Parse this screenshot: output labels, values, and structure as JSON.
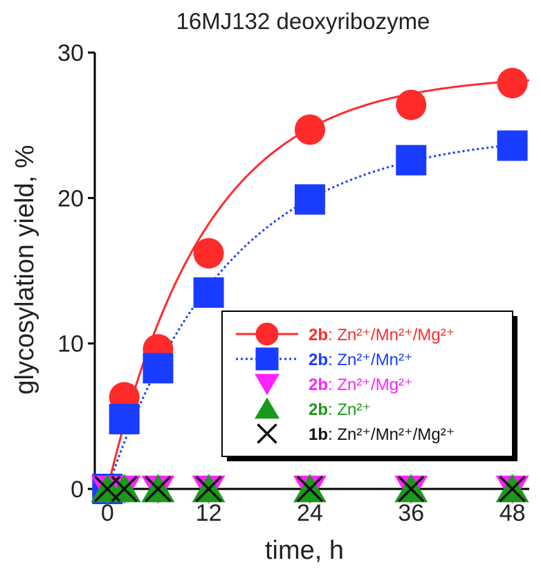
{
  "chart_data": {
    "type": "scatter",
    "title": "16MJ132 deoxyribozyme",
    "xlabel": "time, h",
    "ylabel": "glycosylation yield, %",
    "xlim": [
      -1.5,
      50
    ],
    "ylim": [
      0,
      30
    ],
    "xticks": [
      "0",
      "12",
      "24",
      "36",
      "48"
    ],
    "yticks": [
      "0",
      "10",
      "20",
      "30"
    ],
    "legend_position": "lower-right",
    "series": [
      {
        "name_bold": "2b",
        "name_rest": ": Zn²⁺/Mn²⁺/Mg²⁺",
        "marker": "circle",
        "color": "#ff2a2a",
        "line": "solid",
        "x": [
          0,
          2,
          6,
          12,
          24,
          36,
          48
        ],
        "y": [
          0,
          6.3,
          9.6,
          16.2,
          24.7,
          26.4,
          27.9
        ],
        "fit": {
          "ymax": 28.5,
          "k": 0.085
        }
      },
      {
        "name_bold": "2b",
        "name_rest": ": Zn²⁺/Mn²⁺",
        "marker": "square",
        "color": "#1a3cff",
        "line": "dotted",
        "x": [
          0,
          2,
          6,
          12,
          24,
          36,
          48
        ],
        "y": [
          0,
          4.8,
          8.3,
          13.5,
          19.9,
          22.6,
          23.6
        ],
        "fit": {
          "ymax": 24.5,
          "k": 0.07
        }
      },
      {
        "name_bold": "2b",
        "name_rest": ": Zn²⁺/Mg²⁺",
        "marker": "triangle-down",
        "color": "#ff22ff",
        "line": "none",
        "x": [
          0,
          2,
          6,
          12,
          24,
          36,
          48
        ],
        "y": [
          0,
          0,
          0,
          0,
          0,
          0,
          0
        ]
      },
      {
        "name_bold": "2b",
        "name_rest": ": Zn²⁺",
        "marker": "triangle-up",
        "color": "#1a9a1a",
        "line": "none",
        "x": [
          0,
          2,
          6,
          12,
          24,
          36,
          48
        ],
        "y": [
          0,
          0,
          0,
          0,
          0,
          0,
          0
        ]
      },
      {
        "name_bold": "1b",
        "name_rest": ": Zn²⁺/Mn²⁺/Mg²⁺",
        "marker": "x",
        "color": "#111111",
        "line": "none",
        "x": [
          0,
          2,
          6,
          12,
          24,
          36,
          48
        ],
        "y": [
          0,
          0,
          0,
          0,
          0,
          0,
          0
        ]
      }
    ]
  }
}
